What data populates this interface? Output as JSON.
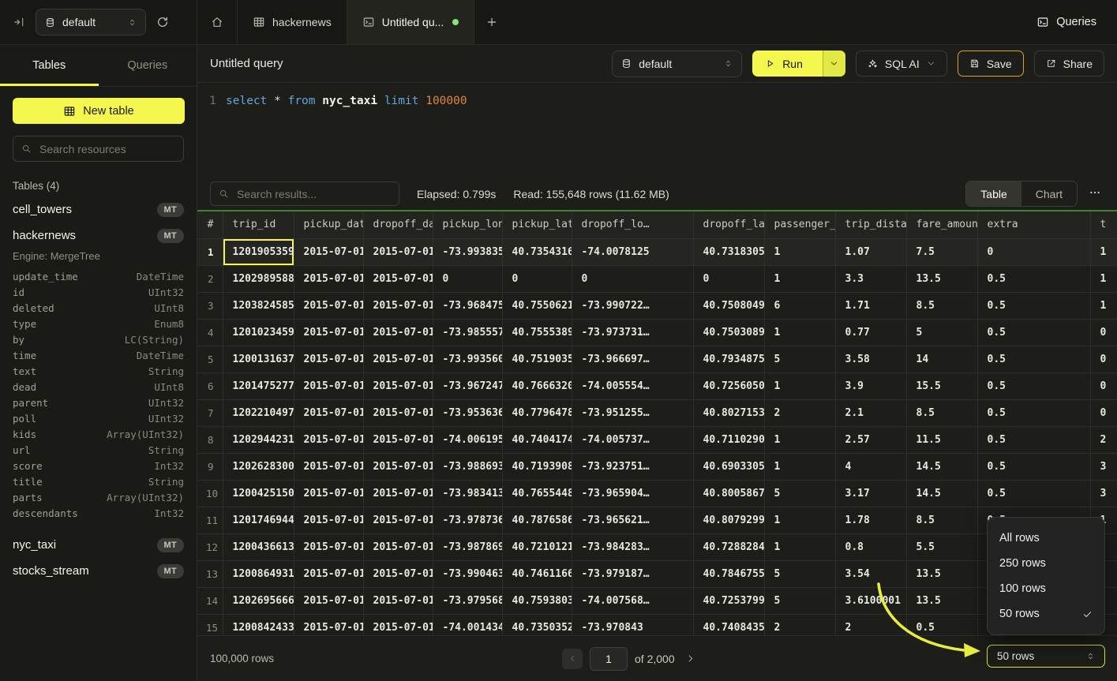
{
  "topbar": {
    "database_selector": "default",
    "tabs": [
      {
        "label": "hackernews"
      },
      {
        "label": "Untitled qu...",
        "unsaved": true
      }
    ],
    "queries_label": "Queries"
  },
  "sidebar": {
    "tabs": [
      {
        "label": "Tables",
        "active": true
      },
      {
        "label": "Queries",
        "active": false
      }
    ],
    "new_table_label": "New table",
    "search_placeholder": "Search resources",
    "section_label": "Tables (4)",
    "tables": [
      {
        "name": "cell_towers",
        "badge": "MT"
      },
      {
        "name": "hackernews",
        "badge": "MT",
        "engine": "Engine: MergeTree",
        "columns": [
          {
            "name": "update_time",
            "type": "DateTime"
          },
          {
            "name": "id",
            "type": "UInt32"
          },
          {
            "name": "deleted",
            "type": "UInt8"
          },
          {
            "name": "type",
            "type": "Enum8"
          },
          {
            "name": "by",
            "type": "LC(String)"
          },
          {
            "name": "time",
            "type": "DateTime"
          },
          {
            "name": "text",
            "type": "String"
          },
          {
            "name": "dead",
            "type": "UInt8"
          },
          {
            "name": "parent",
            "type": "UInt32"
          },
          {
            "name": "poll",
            "type": "UInt32"
          },
          {
            "name": "kids",
            "type": "Array(UInt32)"
          },
          {
            "name": "url",
            "type": "String"
          },
          {
            "name": "score",
            "type": "Int32"
          },
          {
            "name": "title",
            "type": "String"
          },
          {
            "name": "parts",
            "type": "Array(UInt32)"
          },
          {
            "name": "descendants",
            "type": "Int32"
          }
        ]
      },
      {
        "name": "nyc_taxi",
        "badge": "MT"
      },
      {
        "name": "stocks_stream",
        "badge": "MT"
      }
    ]
  },
  "query_editor": {
    "title": "Untitled query",
    "database_selector": "default",
    "run_label": "Run",
    "sql_ai_label": "SQL AI",
    "save_label": "Save",
    "share_label": "Share",
    "sql": {
      "line_number": "1",
      "kw_select": "select",
      "star": " * ",
      "kw_from": "from",
      "table": " nyc_taxi ",
      "kw_limit": "limit",
      "number": " 100000"
    }
  },
  "results": {
    "search_placeholder": "Search results...",
    "elapsed": "Elapsed: 0.799s",
    "read": "Read: 155,648 rows (11.62 MB)",
    "view_tabs": [
      {
        "label": "Table",
        "active": true
      },
      {
        "label": "Chart",
        "active": false
      }
    ],
    "columns": [
      "#",
      "trip_id",
      "pickup_dat…",
      "dropoff_da…",
      "pickup_lon…",
      "pickup_lat…",
      "dropoff_lo…",
      "dropoff_la…",
      "passenger_…",
      "trip_dista…",
      "fare_amount",
      "extra",
      "t"
    ],
    "rows": [
      [
        "1",
        "1201905359",
        "2015-07-01…",
        "2015-07-01…",
        "-73.993835…",
        "40.7354316…",
        "-74.0078125",
        "40.7318305…",
        "1",
        "1.07",
        "7.5",
        "0",
        "1"
      ],
      [
        "2",
        "1202989588",
        "2015-07-01…",
        "2015-07-01…",
        "0",
        "0",
        "0",
        "0",
        "1",
        "3.3",
        "13.5",
        "0.5",
        "1"
      ],
      [
        "3",
        "1203824585",
        "2015-07-01…",
        "2015-07-01…",
        "-73.968475…",
        "40.7550621…",
        "-73.990722…",
        "40.7508049…",
        "6",
        "1.71",
        "8.5",
        "0.5",
        "1"
      ],
      [
        "4",
        "1201023459",
        "2015-07-01…",
        "2015-07-01…",
        "-73.985557…",
        "40.7555389…",
        "-73.973731…",
        "40.7503089…",
        "1",
        "0.77",
        "5",
        "0.5",
        "0"
      ],
      [
        "5",
        "1200131637",
        "2015-07-01…",
        "2015-07-01…",
        "-73.993560…",
        "40.7519035…",
        "-73.966697…",
        "40.7934875…",
        "5",
        "3.58",
        "14",
        "0.5",
        "0"
      ],
      [
        "6",
        "1201475277",
        "2015-07-01…",
        "2015-07-01…",
        "-73.967247…",
        "40.7666320…",
        "-74.005554…",
        "40.7256050…",
        "1",
        "3.9",
        "15.5",
        "0.5",
        "0"
      ],
      [
        "7",
        "1202210497",
        "2015-07-01…",
        "2015-07-01…",
        "-73.953636…",
        "40.7796478…",
        "-73.951255…",
        "40.8027153…",
        "2",
        "2.1",
        "8.5",
        "0.5",
        "0"
      ],
      [
        "8",
        "1202944231",
        "2015-07-01…",
        "2015-07-01…",
        "-74.006195…",
        "40.7404174…",
        "-74.005737…",
        "40.7110290…",
        "1",
        "2.57",
        "11.5",
        "0.5",
        "2"
      ],
      [
        "9",
        "1202628300",
        "2015-07-01…",
        "2015-07-01…",
        "-73.988693…",
        "40.7193908…",
        "-73.923751…",
        "40.6903305…",
        "1",
        "4",
        "14.5",
        "0.5",
        "3"
      ],
      [
        "10",
        "1200425150",
        "2015-07-01…",
        "2015-07-01…",
        "-73.983413…",
        "40.7655448…",
        "-73.965904…",
        "40.8005867…",
        "5",
        "3.17",
        "14.5",
        "0.5",
        "3"
      ],
      [
        "11",
        "1201746944",
        "2015-07-01…",
        "2015-07-01…",
        "-73.978736…",
        "40.7876586…",
        "-73.965621…",
        "40.8079299…",
        "1",
        "1.78",
        "8.5",
        "0.5",
        "1"
      ],
      [
        "12",
        "1200436613",
        "2015-07-01…",
        "2015-07-01…",
        "-73.987869…",
        "40.7210121…",
        "-73.984283…",
        "40.7288284…",
        "1",
        "0.8",
        "5.5",
        "",
        ""
      ],
      [
        "13",
        "1200864931",
        "2015-07-01…",
        "2015-07-01…",
        "-73.990463…",
        "40.7461166…",
        "-73.979187…",
        "40.7846755…",
        "5",
        "3.54",
        "13.5",
        "",
        ""
      ],
      [
        "14",
        "1202695666",
        "2015-07-01…",
        "2015-07-01…",
        "-73.979568…",
        "40.7593803…",
        "-74.007568…",
        "40.7253799…",
        "5",
        "3.6100001",
        "13.5",
        "",
        ""
      ],
      [
        "15",
        "1200842433",
        "2015-07-01…",
        "2015-07-01…",
        "-74.001434",
        "40.7350352",
        "-73.970843",
        "40.7408435",
        "2",
        "2",
        "0.5",
        "",
        ""
      ]
    ],
    "selected_cell": {
      "row": 0,
      "col": 1
    }
  },
  "footer": {
    "total_rows": "100,000 rows",
    "page_value": "1",
    "page_total": "of 2,000",
    "page_size": "50 rows"
  },
  "page_size_menu": {
    "items": [
      "All rows",
      "250 rows",
      "100 rows",
      "50 rows"
    ],
    "selected": "50 rows"
  },
  "colors": {
    "accent_yellow": "#f5f74e",
    "save_border": "#dba032",
    "results_top_border_green": "#3e8239",
    "unsaved_dot_green": "#87e37d"
  },
  "icons": [
    "sidebar-expand-icon",
    "database-icon",
    "refresh-icon",
    "home-icon",
    "table-icon",
    "terminal-icon",
    "plus-icon",
    "chevron-updown-icon",
    "play-icon",
    "chevron-down-icon",
    "sparkles-icon",
    "save-icon",
    "share-icon",
    "search-icon",
    "ellipsis-icon",
    "chevron-left-icon",
    "chevron-right-icon",
    "check-icon"
  ]
}
